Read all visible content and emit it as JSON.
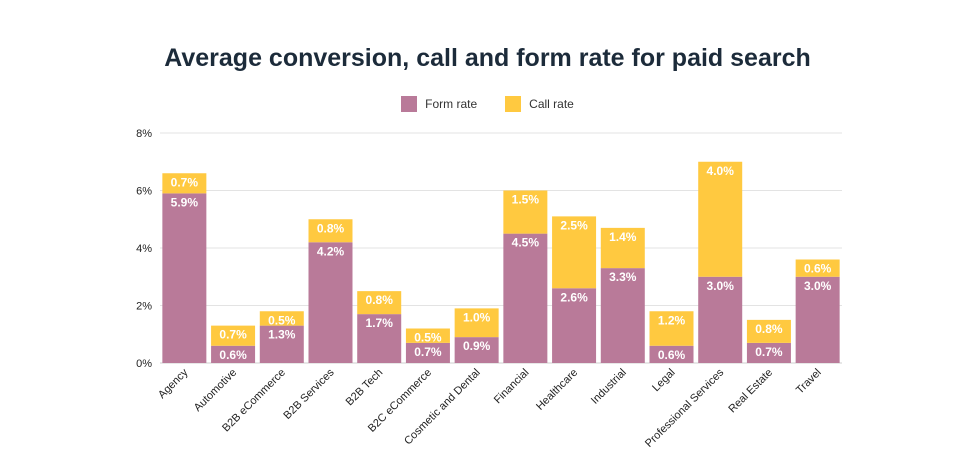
{
  "chart_data": {
    "type": "bar",
    "stacked": true,
    "title": "Average conversion, call and form rate for paid search",
    "categories": [
      "Agency",
      "Automotive",
      "B2B eCommerce",
      "B2B Services",
      "B2B Tech",
      "B2C eCommerce",
      "Cosmetic and Dental",
      "Financial",
      "Healthcare",
      "Industrial",
      "Legal",
      "Professional Services",
      "Real Estate",
      "Travel"
    ],
    "series": [
      {
        "name": "Form rate",
        "color": "#b97a99",
        "values": [
          5.9,
          0.6,
          1.3,
          4.2,
          1.7,
          0.7,
          0.9,
          4.5,
          2.6,
          3.3,
          0.6,
          3.0,
          0.7,
          3.0
        ],
        "labels": [
          "5.9%",
          "0.6%",
          "1.3%",
          "4.2%",
          "1.7%",
          "0.7%",
          "0.9%",
          "4.5%",
          "2.6%",
          "3.3%",
          "0.6%",
          "3.0%",
          "0.7%",
          "3.0%"
        ]
      },
      {
        "name": "Call rate",
        "color": "#ffc940",
        "values": [
          0.7,
          0.7,
          0.5,
          0.8,
          0.8,
          0.5,
          1.0,
          1.5,
          2.5,
          1.4,
          1.2,
          4.0,
          0.8,
          0.6
        ],
        "labels": [
          "0.7%",
          "0.7%",
          "0.5%",
          "0.8%",
          "0.8%",
          "0.5%",
          "1.0%",
          "1.5%",
          "2.5%",
          "1.4%",
          "1.2%",
          "4.0%",
          "0.8%",
          "0.6%"
        ]
      }
    ],
    "ylim": [
      0,
      8
    ],
    "yticks": [
      "0%",
      "2%",
      "4%",
      "6%",
      "8%"
    ],
    "xlabel": "",
    "ylabel": "",
    "grid": true,
    "legend_position": "top-center"
  }
}
